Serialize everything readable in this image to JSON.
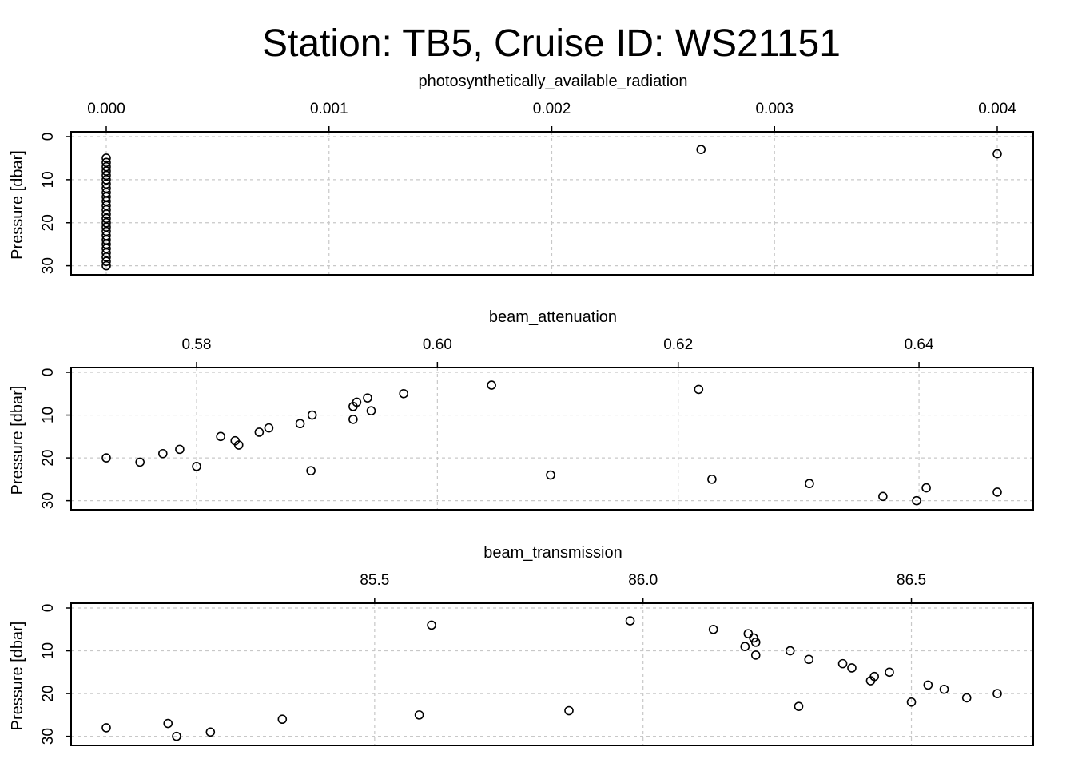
{
  "title": "Station: TB5, Cruise ID: WS21151",
  "chart_data": [
    {
      "type": "scatter",
      "xlabel": "photosynthetically_available_radiation",
      "ylabel": "Pressure [dbar]",
      "xlim": [
        0.0,
        0.004
      ],
      "ylim": [
        0,
        31
      ],
      "y_reversed": true,
      "x_axis_position": "top",
      "grid": true,
      "xticks": [
        0.0,
        0.001,
        0.002,
        0.003,
        0.004
      ],
      "xtick_labels": [
        "0.000",
        "0.001",
        "0.002",
        "0.003",
        "0.004"
      ],
      "yticks": [
        0,
        10,
        20,
        30
      ],
      "ytick_labels": [
        "0",
        "10",
        "20",
        "30"
      ],
      "points": [
        [
          0.00267,
          3
        ],
        [
          0.004,
          4
        ],
        [
          0.0,
          5
        ],
        [
          0.0,
          6
        ],
        [
          0.0,
          7
        ],
        [
          0.0,
          8
        ],
        [
          0.0,
          9
        ],
        [
          0.0,
          10
        ],
        [
          0.0,
          11
        ],
        [
          0.0,
          12
        ],
        [
          0.0,
          13
        ],
        [
          0.0,
          14
        ],
        [
          0.0,
          15
        ],
        [
          0.0,
          16
        ],
        [
          0.0,
          17
        ],
        [
          0.0,
          18
        ],
        [
          0.0,
          19
        ],
        [
          0.0,
          20
        ],
        [
          0.0,
          21
        ],
        [
          0.0,
          22
        ],
        [
          0.0,
          23
        ],
        [
          0.0,
          24
        ],
        [
          0.0,
          25
        ],
        [
          0.0,
          26
        ],
        [
          0.0,
          27
        ],
        [
          0.0,
          28
        ],
        [
          0.0,
          29
        ],
        [
          0.0,
          30
        ]
      ]
    },
    {
      "type": "scatter",
      "xlabel": "beam_attenuation",
      "ylabel": "Pressure [dbar]",
      "xlim": [
        0.5725,
        0.6465
      ],
      "ylim": [
        0,
        31
      ],
      "y_reversed": true,
      "x_axis_position": "top",
      "grid": true,
      "xticks": [
        0.58,
        0.6,
        0.62,
        0.64
      ],
      "xtick_labels": [
        "0.58",
        "0.60",
        "0.62",
        "0.64"
      ],
      "yticks": [
        0,
        10,
        20,
        30
      ],
      "ytick_labels": [
        "0",
        "10",
        "20",
        "30"
      ],
      "points": [
        [
          0.6045,
          3
        ],
        [
          0.6217,
          4
        ],
        [
          0.5972,
          5
        ],
        [
          0.5942,
          6
        ],
        [
          0.5933,
          7
        ],
        [
          0.593,
          8
        ],
        [
          0.5945,
          9
        ],
        [
          0.5896,
          10
        ],
        [
          0.593,
          11
        ],
        [
          0.5886,
          12
        ],
        [
          0.586,
          13
        ],
        [
          0.5852,
          14
        ],
        [
          0.582,
          15
        ],
        [
          0.5832,
          16
        ],
        [
          0.5835,
          17
        ],
        [
          0.5786,
          18
        ],
        [
          0.5772,
          19
        ],
        [
          0.5725,
          20
        ],
        [
          0.5753,
          21
        ],
        [
          0.58,
          22
        ],
        [
          0.5895,
          23
        ],
        [
          0.6094,
          24
        ],
        [
          0.6228,
          25
        ],
        [
          0.6309,
          26
        ],
        [
          0.6406,
          27
        ],
        [
          0.6465,
          28
        ],
        [
          0.637,
          29
        ],
        [
          0.6398,
          30
        ]
      ]
    },
    {
      "type": "scatter",
      "xlabel": "beam_transmission",
      "ylabel": "Pressure [dbar]",
      "xlim": [
        85.0,
        86.66
      ],
      "ylim": [
        0,
        31
      ],
      "y_reversed": true,
      "x_axis_position": "top",
      "grid": true,
      "xticks": [
        85.5,
        86.0,
        86.5
      ],
      "xtick_labels": [
        "85.5",
        "86.0",
        "86.5"
      ],
      "yticks": [
        0,
        10,
        20,
        30
      ],
      "ytick_labels": [
        "0",
        "10",
        "20",
        "30"
      ],
      "points": [
        [
          85.976,
          3
        ],
        [
          85.606,
          4
        ],
        [
          86.131,
          5
        ],
        [
          86.196,
          6
        ],
        [
          86.206,
          7
        ],
        [
          86.21,
          8
        ],
        [
          86.19,
          9
        ],
        [
          86.274,
          10
        ],
        [
          86.21,
          11
        ],
        [
          86.309,
          12
        ],
        [
          86.372,
          13
        ],
        [
          86.389,
          14
        ],
        [
          86.459,
          15
        ],
        [
          86.431,
          16
        ],
        [
          86.424,
          17
        ],
        [
          86.531,
          18
        ],
        [
          86.561,
          19
        ],
        [
          86.66,
          20
        ],
        [
          86.603,
          21
        ],
        [
          86.5,
          22
        ],
        [
          86.29,
          23
        ],
        [
          85.862,
          24
        ],
        [
          85.583,
          25
        ],
        [
          85.328,
          26
        ],
        [
          85.115,
          27
        ],
        [
          85.0,
          28
        ],
        [
          85.194,
          29
        ],
        [
          85.131,
          30
        ]
      ]
    }
  ]
}
